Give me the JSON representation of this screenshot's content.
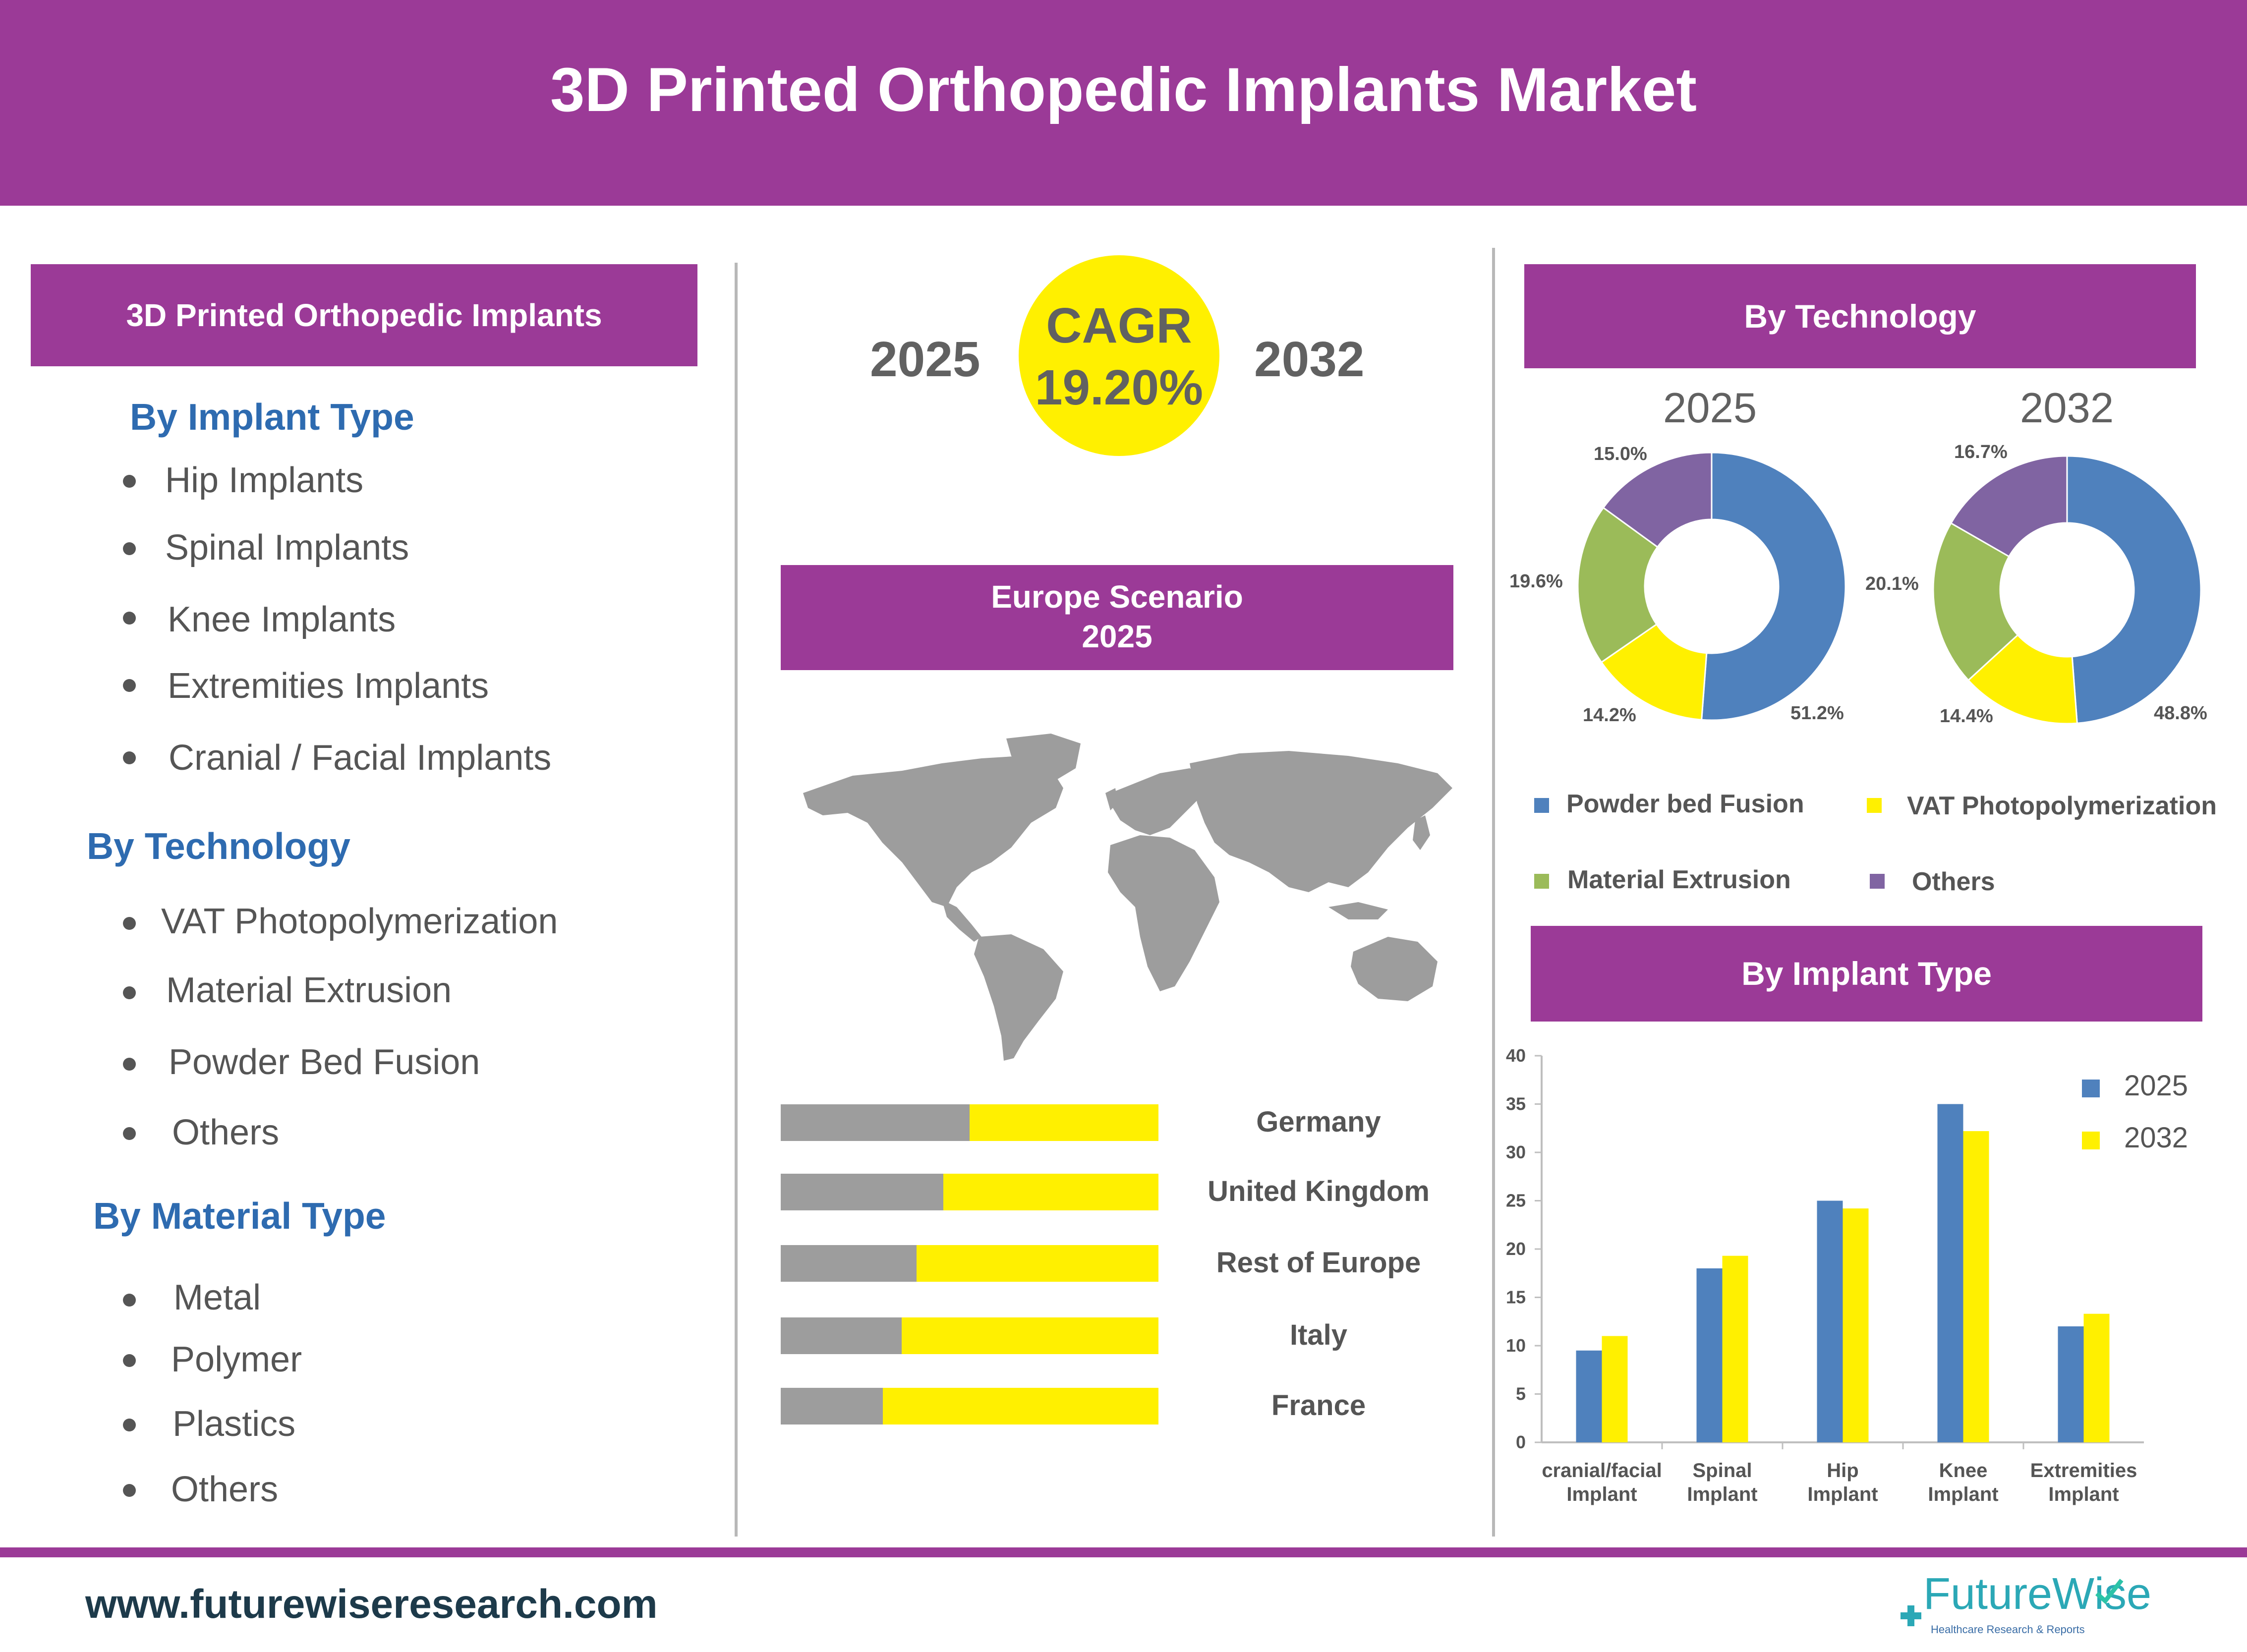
{
  "title": "3D Printed Orthopedic Implants Market",
  "left_panel": {
    "header": "3D Printed Orthopedic Implants",
    "sections": [
      {
        "title": "By Implant Type",
        "items": [
          "Hip Implants",
          "Spinal Implants",
          "Knee Implants",
          "Extremities Implants",
          "Cranial / Facial Implants"
        ]
      },
      {
        "title": "By Technology",
        "items": [
          "VAT Photopolymerization",
          "Material Extrusion",
          "Powder Bed Fusion",
          "Others"
        ]
      },
      {
        "title": "By Material Type",
        "items": [
          "Metal",
          "Polymer",
          "Plastics",
          "Others"
        ]
      }
    ]
  },
  "cagr": {
    "start_year": "2025",
    "end_year": "2032",
    "label": "CAGR",
    "value": "19.20%"
  },
  "europe": {
    "header_line1": "Europe Scenario",
    "header_line2": "2025"
  },
  "technology": {
    "header": "By Technology",
    "legend": [
      "Powder bed Fusion",
      "VAT  Photopolymerization",
      "Material Extrusion",
      "Others"
    ]
  },
  "implant_chart_header": "By Implant Type",
  "footer": {
    "url": "www.futurewiseresearch.com",
    "logo": "FutureWise",
    "logo_tagline": "Healthcare Research & Reports"
  },
  "colors": {
    "purple": "#9b3a97",
    "blue": "#4f81bd",
    "yellow": "#fff000",
    "green": "#9bbb59",
    "violet": "#8064a2",
    "grey": "#9d9d9d"
  },
  "chart_data": [
    {
      "type": "pie",
      "title": "2025",
      "categories": [
        "Powder bed Fusion",
        "VAT  Photopolymerization",
        "Material Extrusion",
        "Others"
      ],
      "values": [
        51.2,
        14.2,
        19.6,
        15.0
      ],
      "labels": [
        "51.2%",
        "14.2%",
        "19.6%",
        "15.0%"
      ]
    },
    {
      "type": "pie",
      "title": "2032",
      "categories": [
        "Powder bed Fusion",
        "VAT  Photopolymerization",
        "Material Extrusion",
        "Others"
      ],
      "values": [
        48.8,
        14.4,
        20.1,
        16.7
      ],
      "labels": [
        "48.8%",
        "14.4%",
        "20.1%",
        "16.7%"
      ]
    },
    {
      "type": "bar",
      "title": "Europe Scenario 2025",
      "categories": [
        "Germany",
        "United Kingdom",
        "Rest of Europe",
        "Italy",
        "France"
      ],
      "series": [
        {
          "name": "grey",
          "values": [
            50,
            43,
            36,
            32,
            27
          ]
        },
        {
          "name": "yellow",
          "values": [
            50,
            57,
            64,
            68,
            73
          ]
        }
      ],
      "stacked": true,
      "orientation": "horizontal"
    },
    {
      "type": "bar",
      "title": "By Implant Type",
      "categories": [
        "cranial/facial Implant",
        "Spinal Implant",
        "Hip Implant",
        "Knee Implant",
        "Extremities Implant"
      ],
      "series": [
        {
          "name": "2025",
          "values": [
            9.5,
            18,
            25,
            35,
            12
          ]
        },
        {
          "name": "2032",
          "values": [
            11,
            19.3,
            24.2,
            32.2,
            13.3
          ]
        }
      ],
      "yticks": [
        "0",
        "5",
        "10",
        "15",
        "20",
        "25",
        "30",
        "35",
        "40"
      ],
      "ylim": [
        0,
        40
      ]
    }
  ]
}
